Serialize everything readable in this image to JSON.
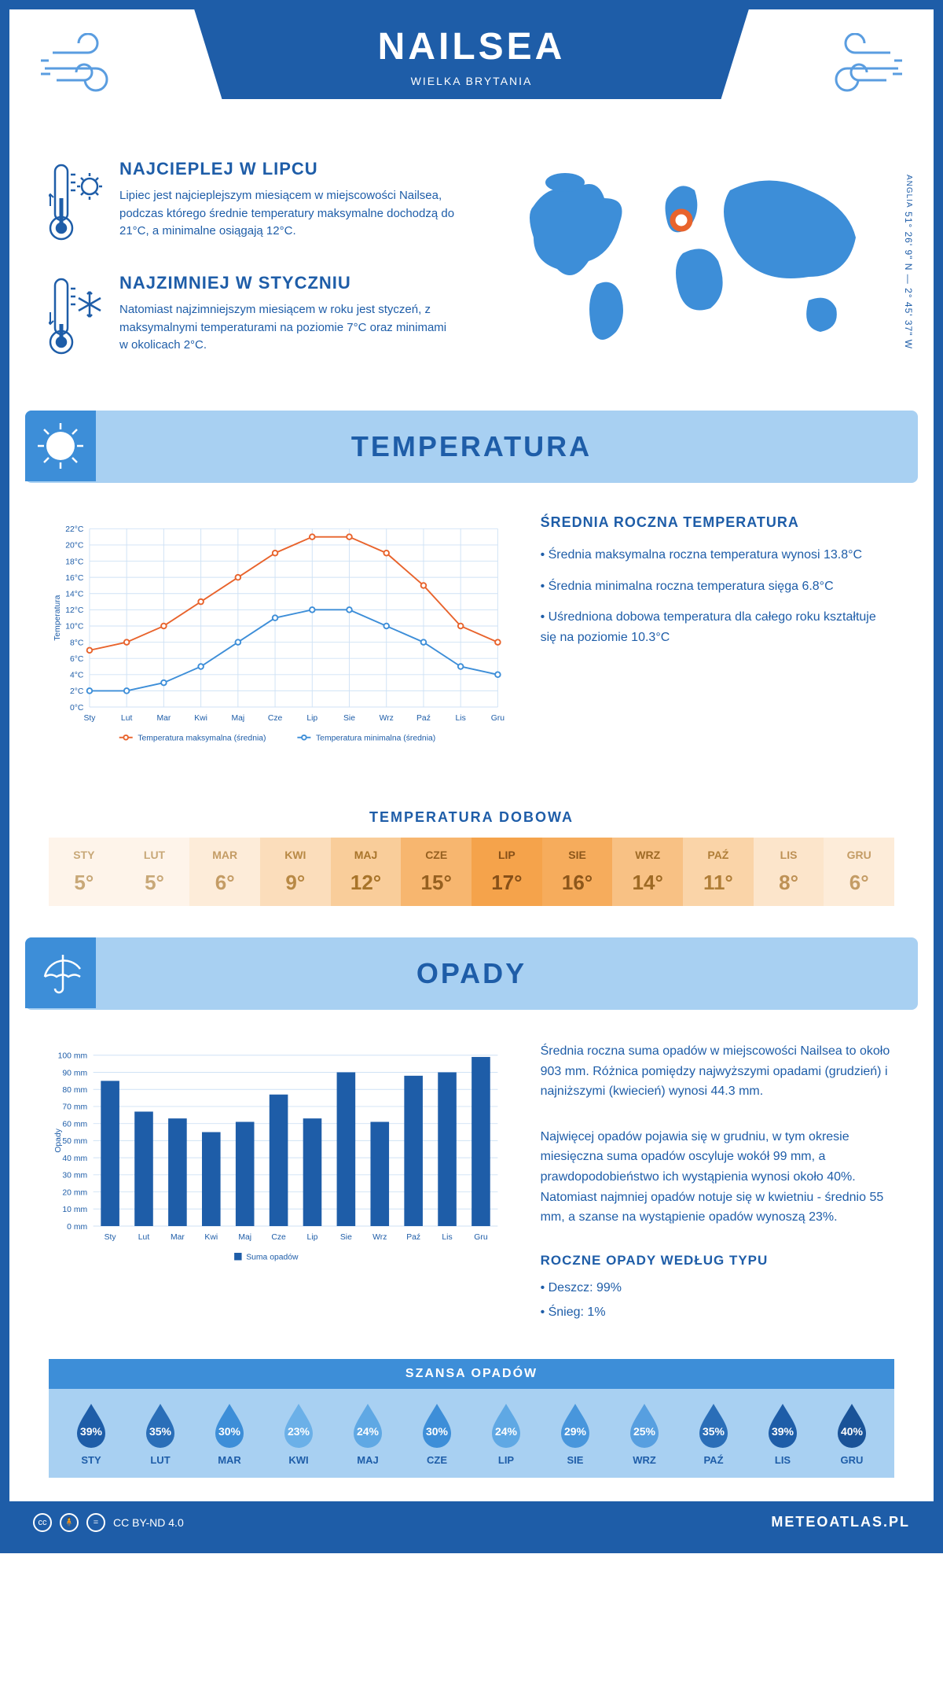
{
  "header": {
    "city": "NAILSEA",
    "country": "WIELKA BRYTANIA"
  },
  "coords": {
    "region": "ANGLIA",
    "text": "51° 26' 9\" N — 2° 45' 37\" W"
  },
  "warmest": {
    "title": "NAJCIEPLEJ W LIPCU",
    "text": "Lipiec jest najcieplejszym miesiącem w miejscowości Nailsea, podczas którego średnie temperatury maksymalne dochodzą do 21°C, a minimalne osiągają 12°C."
  },
  "coldest": {
    "title": "NAJZIMNIEJ W STYCZNIU",
    "text": "Natomiast najzimniejszym miesiącem w roku jest styczeń, z maksymalnymi temperaturami na poziomie 7°C oraz minimami w okolicach 2°C."
  },
  "temp_section": {
    "title": "TEMPERATURA",
    "chart": {
      "type": "line",
      "months": [
        "Sty",
        "Lut",
        "Mar",
        "Kwi",
        "Maj",
        "Cze",
        "Lip",
        "Sie",
        "Wrz",
        "Paź",
        "Lis",
        "Gru"
      ],
      "max_series": [
        7,
        8,
        10,
        13,
        16,
        19,
        21,
        21,
        19,
        15,
        10,
        8
      ],
      "min_series": [
        2,
        2,
        3,
        5,
        8,
        11,
        12,
        12,
        10,
        8,
        5,
        4
      ],
      "max_color": "#e8632c",
      "min_color": "#3d8ed8",
      "grid_color": "#cfe2f5",
      "ylim": [
        0,
        22
      ],
      "ytick_step": 2,
      "ylabel": "Temperatura",
      "legend_max": "Temperatura maksymalna (średnia)",
      "legend_min": "Temperatura minimalna (średnia)",
      "axis_color": "#1e5da8",
      "label_fontsize": 11
    },
    "annual": {
      "title": "ŚREDNIA ROCZNA TEMPERATURA",
      "p1": "• Średnia maksymalna roczna temperatura wynosi 13.8°C",
      "p2": "• Średnia minimalna roczna temperatura sięga 6.8°C",
      "p3": "• Uśredniona dobowa temperatura dla całego roku kształtuje się na poziomie 10.3°C"
    },
    "daily": {
      "title": "TEMPERATURA DOBOWA",
      "months": [
        "STY",
        "LUT",
        "MAR",
        "KWI",
        "MAJ",
        "CZE",
        "LIP",
        "SIE",
        "WRZ",
        "PAŹ",
        "LIS",
        "GRU"
      ],
      "values": [
        "5°",
        "5°",
        "6°",
        "9°",
        "12°",
        "15°",
        "17°",
        "16°",
        "14°",
        "11°",
        "8°",
        "6°"
      ],
      "bg_colors": [
        "#fef4ea",
        "#fef4ea",
        "#fdecd9",
        "#fbddbb",
        "#f9cd9a",
        "#f7b66f",
        "#f5a34b",
        "#f6ac5c",
        "#f8c184",
        "#fad4a8",
        "#fce5cb",
        "#fdecd9"
      ],
      "text_colors": [
        "#c8a878",
        "#c8a878",
        "#c49c65",
        "#b88945",
        "#a8742a",
        "#966020",
        "#875018",
        "#8d571b",
        "#9e6a25",
        "#b07e38",
        "#be9155",
        "#c49c65"
      ]
    }
  },
  "rain_section": {
    "title": "OPADY",
    "chart": {
      "type": "bar",
      "months": [
        "Sty",
        "Lut",
        "Mar",
        "Kwi",
        "Maj",
        "Cze",
        "Lip",
        "Sie",
        "Wrz",
        "Paź",
        "Lis",
        "Gru"
      ],
      "values": [
        85,
        67,
        63,
        55,
        61,
        77,
        63,
        90,
        61,
        88,
        90,
        99
      ],
      "bar_color": "#1e5da8",
      "grid_color": "#cfe2f5",
      "ylim": [
        0,
        100
      ],
      "ytick_step": 10,
      "ylabel": "Opady",
      "legend": "Suma opadów",
      "axis_color": "#1e5da8",
      "label_fontsize": 11,
      "bar_width": 0.55
    },
    "text": {
      "p1": "Średnia roczna suma opadów w miejscowości Nailsea to około 903 mm. Różnica pomiędzy najwyższymi opadami (grudzień) i najniższymi (kwiecień) wynosi 44.3 mm.",
      "p2": "Najwięcej opadów pojawia się w grudniu, w tym okresie miesięczna suma opadów oscyluje wokół 99 mm, a prawdopodobieństwo ich wystąpienia wynosi około 40%. Natomiast najmniej opadów notuje się w kwietniu - średnio 55 mm, a szanse na wystąpienie opadów wynoszą 23%."
    },
    "chance": {
      "title": "SZANSA OPADÓW",
      "months": [
        "STY",
        "LUT",
        "MAR",
        "KWI",
        "MAJ",
        "CZE",
        "LIP",
        "SIE",
        "WRZ",
        "PAŹ",
        "LIS",
        "GRU"
      ],
      "values": [
        "39%",
        "35%",
        "30%",
        "23%",
        "24%",
        "30%",
        "24%",
        "29%",
        "25%",
        "35%",
        "39%",
        "40%"
      ],
      "drop_colors": [
        "#1e5da8",
        "#2a6eb8",
        "#3d8ed8",
        "#6bb0e8",
        "#5fa8e4",
        "#3d8ed8",
        "#5fa8e4",
        "#4896dc",
        "#579fe0",
        "#2a6eb8",
        "#1e5da8",
        "#1a5398"
      ]
    },
    "type": {
      "title": "ROCZNE OPADY WEDŁUG TYPU",
      "rain": "• Deszcz: 99%",
      "snow": "• Śnieg: 1%"
    }
  },
  "footer": {
    "license": "CC BY-ND 4.0",
    "site": "METEOATLAS.PL"
  }
}
